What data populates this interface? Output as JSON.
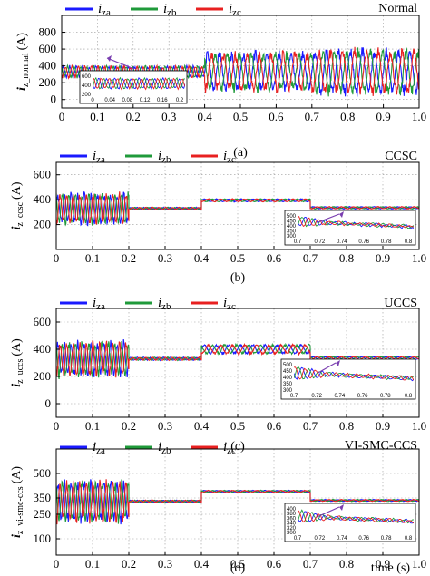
{
  "colors": {
    "iza": "#1a1aff",
    "izb": "#1f9a3a",
    "izc": "#e82020"
  },
  "chart_data": [
    {
      "type": "line",
      "caption": "(a)",
      "title": "Normal",
      "ylabel_main": "i",
      "ylabel_sub": "z_normal",
      "ylabel_unit": "(A)",
      "xlim": [
        0,
        1.0
      ],
      "ylim": [
        -100,
        1000
      ],
      "xticks": [
        "0",
        "0.1",
        "0.2",
        "0.3",
        "0.4",
        "0.5",
        "0.6",
        "0.7",
        "0.8",
        "0.9",
        "1.0"
      ],
      "yticks": [
        {
          "value": 0,
          "label": "0"
        },
        {
          "value": 200,
          "label": "200"
        },
        {
          "value": 400,
          "label": "400"
        },
        {
          "value": 600,
          "label": "600"
        },
        {
          "value": 800,
          "label": "800"
        }
      ],
      "legend": [
        {
          "main": "i",
          "sub": "za"
        },
        {
          "main": "i",
          "sub": "zb"
        },
        {
          "main": "i",
          "sub": "zc"
        }
      ],
      "series": [
        {
          "segments": [
            [
              0,
              0.2,
              330,
              60,
              55
            ],
            [
              0.2,
              0.4,
              330,
              60,
              55
            ],
            [
              0.4,
              0.7,
              330,
              200,
              30
            ],
            [
              0.7,
              1.0,
              330,
              230,
              30
            ]
          ]
        },
        {
          "segments": [
            [
              0,
              0.2,
              330,
              60,
              55
            ],
            [
              0.2,
              0.4,
              330,
              60,
              55
            ],
            [
              0.4,
              0.7,
              330,
              200,
              30
            ],
            [
              0.7,
              1.0,
              330,
              230,
              30
            ]
          ]
        },
        {
          "segments": [
            [
              0,
              0.2,
              330,
              60,
              55
            ],
            [
              0.2,
              0.4,
              330,
              60,
              55
            ],
            [
              0.4,
              0.7,
              330,
              200,
              30
            ],
            [
              0.7,
              1.0,
              330,
              230,
              30
            ]
          ]
        }
      ],
      "inset": {
        "xticks": [
          "0",
          "0.04",
          "0.08",
          "0.12",
          "0.16",
          "0.2"
        ],
        "yticks": [
          "600",
          "400",
          "200"
        ]
      }
    },
    {
      "type": "line",
      "caption": "(b)",
      "title": "CCSC",
      "ylabel_main": "i",
      "ylabel_sub": "z_ccsc",
      "ylabel_unit": "(A)",
      "xlim": [
        0,
        1.0
      ],
      "ylim": [
        0,
        700
      ],
      "xticks": [
        "0",
        "0.1",
        "0.2",
        "0.3",
        "0.4",
        "0.5",
        "0.6",
        "0.7",
        "0.8",
        "0.9",
        "1.0"
      ],
      "yticks": [
        {
          "value": 200,
          "label": "200"
        },
        {
          "value": 400,
          "label": "400"
        },
        {
          "value": 600,
          "label": "600"
        }
      ],
      "legend": [
        {
          "main": "i",
          "sub": "za"
        },
        {
          "main": "i",
          "sub": "zb"
        },
        {
          "main": "i",
          "sub": "zc"
        }
      ],
      "series": [
        {
          "segments": [
            [
              0,
              0.2,
              330,
              110,
              55
            ],
            [
              0.2,
              0.4,
              330,
              8,
              55
            ],
            [
              0.4,
              0.7,
              395,
              10,
              30
            ],
            [
              0.7,
              1.0,
              335,
              8,
              30
            ]
          ]
        },
        {
          "segments": [
            [
              0,
              0.2,
              330,
              110,
              55
            ],
            [
              0.2,
              0.4,
              330,
              8,
              55
            ],
            [
              0.4,
              0.7,
              395,
              10,
              30
            ],
            [
              0.7,
              1.0,
              335,
              8,
              30
            ]
          ]
        },
        {
          "segments": [
            [
              0,
              0.2,
              330,
              110,
              55
            ],
            [
              0.2,
              0.4,
              330,
              8,
              55
            ],
            [
              0.4,
              0.7,
              395,
              10,
              30
            ],
            [
              0.7,
              1.0,
              335,
              8,
              30
            ]
          ]
        }
      ],
      "inset": {
        "xticks": [
          "0.7",
          "0.72",
          "0.74",
          "0.76",
          "0.78",
          "0.8"
        ],
        "yticks": [
          "500",
          "450",
          "400",
          "350",
          "300"
        ]
      }
    },
    {
      "type": "line",
      "caption": "(c)",
      "title": "UCCS",
      "ylabel_main": "i",
      "ylabel_sub": "z_uccs",
      "ylabel_unit": "(A)",
      "xlim": [
        0,
        1.0
      ],
      "ylim": [
        -100,
        700
      ],
      "xticks": [
        "0",
        "0.1",
        "0.2",
        "0.3",
        "0.4",
        "0.5",
        "0.6",
        "0.7",
        "0.8",
        "0.9",
        "1.0"
      ],
      "yticks": [
        {
          "value": 0,
          "label": "0"
        },
        {
          "value": 200,
          "label": "200"
        },
        {
          "value": 400,
          "label": "400"
        },
        {
          "value": 600,
          "label": "600"
        }
      ],
      "legend": [
        {
          "main": "i",
          "sub": "za"
        },
        {
          "main": "i",
          "sub": "zb"
        },
        {
          "main": "i",
          "sub": "zc"
        }
      ],
      "series": [
        {
          "segments": [
            [
              0,
              0.2,
              330,
              110,
              55
            ],
            [
              0.2,
              0.4,
              330,
              10,
              55
            ],
            [
              0.4,
              0.7,
              400,
              30,
              30
            ],
            [
              0.7,
              1.0,
              335,
              10,
              30
            ]
          ]
        },
        {
          "segments": [
            [
              0,
              0.2,
              330,
              110,
              55
            ],
            [
              0.2,
              0.4,
              330,
              10,
              55
            ],
            [
              0.4,
              0.7,
              400,
              30,
              30
            ],
            [
              0.7,
              1.0,
              335,
              10,
              30
            ]
          ]
        },
        {
          "segments": [
            [
              0,
              0.2,
              330,
              110,
              55
            ],
            [
              0.2,
              0.4,
              330,
              10,
              55
            ],
            [
              0.4,
              0.7,
              400,
              30,
              30
            ],
            [
              0.7,
              1.0,
              335,
              10,
              30
            ]
          ]
        }
      ],
      "inset": {
        "xticks": [
          "0.7",
          "0.72",
          "0.74",
          "0.76",
          "0.78",
          "0.8"
        ],
        "yticks": [
          "500",
          "450",
          "400",
          "350",
          "300"
        ]
      }
    },
    {
      "type": "line",
      "caption": "(d)",
      "title": "VI-SMC-CCS",
      "ylabel_main": "i",
      "ylabel_sub": "z_vi-smc-ccs",
      "ylabel_unit": "(A)",
      "xlabel": "time (s)",
      "xlim": [
        0,
        1.0
      ],
      "ylim": [
        0,
        650
      ],
      "xticks": [
        "0",
        "0.1",
        "0.2",
        "0.3",
        "0.4",
        "0.5",
        "0.6",
        "0.7",
        "0.8",
        "0.9",
        "1.0"
      ],
      "yticks": [
        {
          "value": 100,
          "label": "100"
        },
        {
          "value": 250,
          "label": "250"
        },
        {
          "value": 350,
          "label": "350"
        },
        {
          "value": 500,
          "label": "500"
        }
      ],
      "legend": [
        {
          "main": "i",
          "sub": "za"
        },
        {
          "main": "i",
          "sub": "zb"
        },
        {
          "main": "i",
          "sub": "zc"
        }
      ],
      "series": [
        {
          "segments": [
            [
              0,
              0.2,
              330,
              110,
              55
            ],
            [
              0.2,
              0.4,
              330,
              6,
              55
            ],
            [
              0.4,
              0.7,
              390,
              6,
              30
            ],
            [
              0.7,
              1.0,
              335,
              5,
              30
            ]
          ]
        },
        {
          "segments": [
            [
              0,
              0.2,
              330,
              110,
              55
            ],
            [
              0.2,
              0.4,
              330,
              6,
              55
            ],
            [
              0.4,
              0.7,
              390,
              6,
              30
            ],
            [
              0.7,
              1.0,
              335,
              5,
              30
            ]
          ]
        },
        {
          "segments": [
            [
              0,
              0.2,
              330,
              110,
              55
            ],
            [
              0.2,
              0.4,
              330,
              6,
              55
            ],
            [
              0.4,
              0.7,
              390,
              6,
              30
            ],
            [
              0.7,
              1.0,
              335,
              5,
              30
            ]
          ]
        }
      ],
      "inset": {
        "xticks": [
          "0.7",
          "0.72",
          "0.74",
          "0.76",
          "0.78",
          "0.8"
        ],
        "yticks": [
          "400",
          "380",
          "360",
          "340",
          "320",
          "300"
        ]
      }
    }
  ]
}
